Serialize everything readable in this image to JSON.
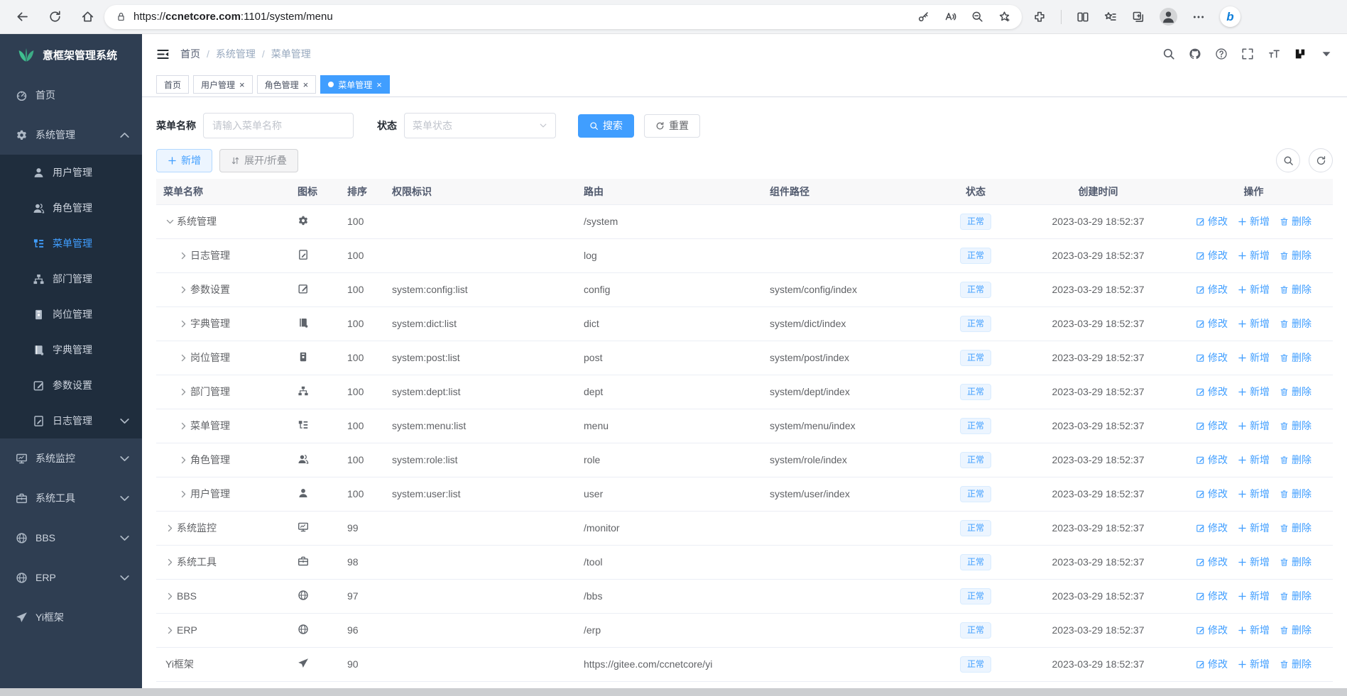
{
  "browser": {
    "url_prefix": "https://",
    "url_domain": "ccnetcore.com",
    "url_path": ":1101/system/menu",
    "nav_icons": [
      "back",
      "refresh",
      "home"
    ],
    "addr_icons": [
      "key",
      "read-aloud",
      "zoom-out",
      "favorite-star"
    ],
    "action_icons": [
      "extensions",
      "divider",
      "split-screen",
      "collections",
      "web-capture",
      "profile",
      "more",
      "bing"
    ]
  },
  "sidebar": {
    "title": "意框架管理系统",
    "logo_icon": "leaf",
    "logo_color": "#3fbf8f",
    "items": [
      {
        "id": "home",
        "label": "首页",
        "icon": "dashboard",
        "sub": false,
        "active": false,
        "arrow": ""
      },
      {
        "id": "system",
        "label": "系统管理",
        "icon": "gear",
        "sub": false,
        "active": false,
        "arrow": "up"
      },
      {
        "id": "user",
        "label": "用户管理",
        "icon": "user",
        "sub": true,
        "active": false,
        "arrow": ""
      },
      {
        "id": "role",
        "label": "角色管理",
        "icon": "users",
        "sub": true,
        "active": false,
        "arrow": ""
      },
      {
        "id": "menu",
        "label": "菜单管理",
        "icon": "menu-tree",
        "sub": true,
        "active": true,
        "arrow": ""
      },
      {
        "id": "dept",
        "label": "部门管理",
        "icon": "org-tree",
        "sub": true,
        "active": false,
        "arrow": ""
      },
      {
        "id": "post",
        "label": "岗位管理",
        "icon": "badge",
        "sub": true,
        "active": false,
        "arrow": ""
      },
      {
        "id": "dict",
        "label": "字典管理",
        "icon": "book",
        "sub": true,
        "active": false,
        "arrow": ""
      },
      {
        "id": "config",
        "label": "参数设置",
        "icon": "edit-square",
        "sub": true,
        "active": false,
        "arrow": ""
      },
      {
        "id": "log",
        "label": "日志管理",
        "icon": "log",
        "sub": true,
        "active": false,
        "arrow": "down"
      },
      {
        "id": "monitor",
        "label": "系统监控",
        "icon": "monitor",
        "sub": false,
        "active": false,
        "arrow": "down"
      },
      {
        "id": "tool",
        "label": "系统工具",
        "icon": "toolbox",
        "sub": false,
        "active": false,
        "arrow": "down"
      },
      {
        "id": "bbs",
        "label": "BBS",
        "icon": "globe",
        "sub": false,
        "active": false,
        "arrow": "down"
      },
      {
        "id": "erp",
        "label": "ERP",
        "icon": "globe",
        "sub": false,
        "active": false,
        "arrow": "down"
      },
      {
        "id": "yi",
        "label": "Yi框架",
        "icon": "plane",
        "sub": false,
        "active": false,
        "arrow": ""
      }
    ]
  },
  "header": {
    "breadcrumb": [
      "首页",
      "系统管理",
      "菜单管理"
    ],
    "separator": "/",
    "action_icons": [
      "search",
      "github",
      "help",
      "fullscreen",
      "font-size"
    ]
  },
  "tabs": [
    {
      "label": "首页",
      "closable": false,
      "active": false
    },
    {
      "label": "用户管理",
      "closable": true,
      "active": false
    },
    {
      "label": "角色管理",
      "closable": true,
      "active": false
    },
    {
      "label": "菜单管理",
      "closable": true,
      "active": true
    }
  ],
  "filters": {
    "name_label": "菜单名称",
    "name_placeholder": "请输入菜单名称",
    "status_label": "状态",
    "status_placeholder": "菜单状态",
    "search_label": "搜索",
    "reset_label": "重置"
  },
  "toolbar": {
    "add_label": "新增",
    "expand_label": "展开/折叠",
    "icon_buttons": [
      "search",
      "refresh"
    ]
  },
  "accent_colors": {
    "primary": "#409eff",
    "sidebar_bg": "#2f3e52",
    "submenu_bg": "#1f2d3d",
    "badge_bg": "#ecf5ff"
  },
  "table": {
    "columns": [
      "菜单名称",
      "图标",
      "排序",
      "权限标识",
      "路由",
      "组件路径",
      "状态",
      "创建时间",
      "操作"
    ],
    "actions": {
      "edit": "修改",
      "add": "新增",
      "delete": "删除"
    },
    "rows": [
      {
        "key": "system",
        "name": "系统管理",
        "icon": "gear",
        "level": 0,
        "expand": "down",
        "sort": "100",
        "perm": "",
        "route": "/system",
        "component": "",
        "status": "正常",
        "time": "2023-03-29 18:52:37"
      },
      {
        "key": "log",
        "name": "日志管理",
        "icon": "log",
        "level": 1,
        "expand": "right",
        "sort": "100",
        "perm": "",
        "route": "log",
        "component": "",
        "status": "正常",
        "time": "2023-03-29 18:52:37"
      },
      {
        "key": "config",
        "name": "参数设置",
        "icon": "edit-square",
        "level": 1,
        "expand": "right",
        "sort": "100",
        "perm": "system:config:list",
        "route": "config",
        "component": "system/config/index",
        "status": "正常",
        "time": "2023-03-29 18:52:37"
      },
      {
        "key": "dict",
        "name": "字典管理",
        "icon": "book",
        "level": 1,
        "expand": "right",
        "sort": "100",
        "perm": "system:dict:list",
        "route": "dict",
        "component": "system/dict/index",
        "status": "正常",
        "time": "2023-03-29 18:52:37"
      },
      {
        "key": "post",
        "name": "岗位管理",
        "icon": "badge",
        "level": 1,
        "expand": "right",
        "sort": "100",
        "perm": "system:post:list",
        "route": "post",
        "component": "system/post/index",
        "status": "正常",
        "time": "2023-03-29 18:52:37"
      },
      {
        "key": "dept",
        "name": "部门管理",
        "icon": "org-tree",
        "level": 1,
        "expand": "right",
        "sort": "100",
        "perm": "system:dept:list",
        "route": "dept",
        "component": "system/dept/index",
        "status": "正常",
        "time": "2023-03-29 18:52:37"
      },
      {
        "key": "menu",
        "name": "菜单管理",
        "icon": "menu-tree",
        "level": 1,
        "expand": "right",
        "sort": "100",
        "perm": "system:menu:list",
        "route": "menu",
        "component": "system/menu/index",
        "status": "正常",
        "time": "2023-03-29 18:52:37"
      },
      {
        "key": "role",
        "name": "角色管理",
        "icon": "users",
        "level": 1,
        "expand": "right",
        "sort": "100",
        "perm": "system:role:list",
        "route": "role",
        "component": "system/role/index",
        "status": "正常",
        "time": "2023-03-29 18:52:37"
      },
      {
        "key": "user",
        "name": "用户管理",
        "icon": "user",
        "level": 1,
        "expand": "right",
        "sort": "100",
        "perm": "system:user:list",
        "route": "user",
        "component": "system/user/index",
        "status": "正常",
        "time": "2023-03-29 18:52:37"
      },
      {
        "key": "monitor",
        "name": "系统监控",
        "icon": "monitor",
        "level": 0,
        "expand": "right",
        "sort": "99",
        "perm": "",
        "route": "/monitor",
        "component": "",
        "status": "正常",
        "time": "2023-03-29 18:52:37"
      },
      {
        "key": "tool",
        "name": "系统工具",
        "icon": "toolbox",
        "level": 0,
        "expand": "right",
        "sort": "98",
        "perm": "",
        "route": "/tool",
        "component": "",
        "status": "正常",
        "time": "2023-03-29 18:52:37"
      },
      {
        "key": "bbs",
        "name": "BBS",
        "icon": "globe",
        "level": 0,
        "expand": "right",
        "sort": "97",
        "perm": "",
        "route": "/bbs",
        "component": "",
        "status": "正常",
        "time": "2023-03-29 18:52:37"
      },
      {
        "key": "erp",
        "name": "ERP",
        "icon": "globe",
        "level": 0,
        "expand": "right",
        "sort": "96",
        "perm": "",
        "route": "/erp",
        "component": "",
        "status": "正常",
        "time": "2023-03-29 18:52:37"
      },
      {
        "key": "yi",
        "name": "Yi框架",
        "icon": "plane",
        "level": 0,
        "expand": "none",
        "sort": "90",
        "perm": "",
        "route": "https://gitee.com/ccnetcore/yi",
        "component": "",
        "status": "正常",
        "time": "2023-03-29 18:52:37"
      }
    ]
  }
}
